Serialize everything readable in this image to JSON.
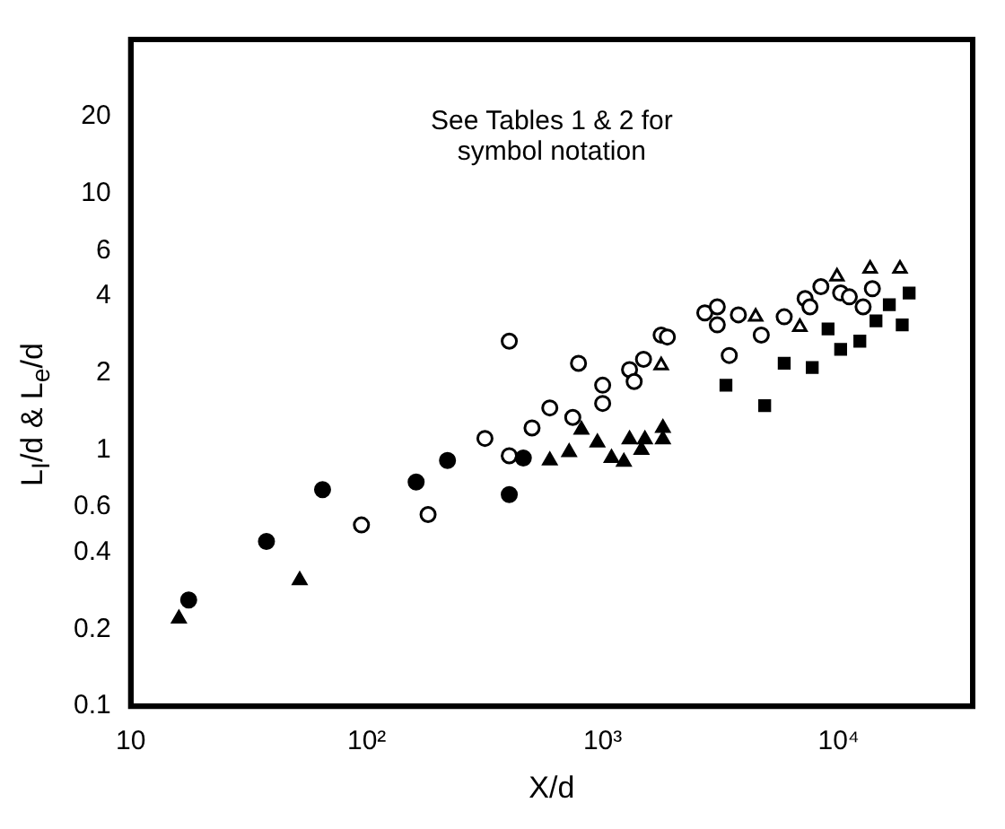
{
  "chart_data": {
    "type": "scatter",
    "xlabel": "X/d",
    "ylabel": "L$_{I}$/d & L$_{e}$/d",
    "annotations": [
      "See Tables 1 & 2 for\nsymbol notation"
    ],
    "log": "xy",
    "grid": false,
    "legend": false,
    "xlim": [
      10,
      37000
    ],
    "xticks": [
      10,
      {
        "value": 100,
        "label": "10²"
      },
      {
        "value": 1000,
        "label": "10³"
      },
      {
        "value": 10000,
        "label": "10⁴"
      }
    ],
    "ylim": [
      0.1,
      40
    ],
    "yticks": [
      0.1,
      0.2,
      0.4,
      0.6,
      1,
      2,
      4,
      6,
      10,
      20
    ],
    "series": [
      {
        "color": "#000000",
        "marker": "circle",
        "x": [
          17.6,
          37.6,
          65,
          162,
          220,
          402,
          461
        ],
        "values": [
          0.26,
          0.44,
          0.7,
          0.75,
          0.91,
          0.67,
          0.93
        ]
      },
      {
        "color": "#000000",
        "marker": "triangle",
        "x": [
          16,
          52,
          597,
          721,
          813,
          950,
          1090,
          1230,
          1300,
          1460,
          1510,
          1800,
          1800
        ],
        "values": [
          0.22,
          0.31,
          0.91,
          0.98,
          1.2,
          1.07,
          0.93,
          0.9,
          1.1,
          1.0,
          1.1,
          1.22,
          1.1
        ]
      },
      {
        "color": "#000000",
        "marker": "square",
        "x": [
          3330,
          4860,
          5880,
          7730,
          9020,
          10200,
          12300,
          14400,
          16400,
          18600,
          19900
        ],
        "values": [
          1.79,
          1.49,
          2.18,
          2.1,
          2.97,
          2.47,
          2.66,
          3.19,
          3.69,
          3.08,
          4.1
        ]
      },
      {
        "color": "#ffffff",
        "marker": "circle",
        "x": [
          95,
          182,
          317,
          402,
          402,
          502,
          597,
          747,
          790,
          1000,
          1000,
          1300,
          1360,
          1490,
          1770,
          1880,
          2710,
          3060,
          3060,
          3760,
          3440,
          4700,
          5880,
          7210,
          7560,
          8410,
          10200,
          11100,
          13900,
          12700
        ],
        "values": [
          0.51,
          0.56,
          1.11,
          0.95,
          2.66,
          1.22,
          1.46,
          1.34,
          2.18,
          1.79,
          1.52,
          2.06,
          1.85,
          2.26,
          2.81,
          2.76,
          3.43,
          3.62,
          3.08,
          3.37,
          2.34,
          2.81,
          3.31,
          3.9,
          3.62,
          4.34,
          4.1,
          3.96,
          4.26,
          3.62
        ]
      },
      {
        "color": "#ffffff",
        "marker": "triangle",
        "x": [
          1770,
          4450,
          6850,
          9840,
          13600,
          18200
        ],
        "values": [
          2.14,
          3.31,
          3.02,
          4.75,
          5.1,
          5.1
        ]
      }
    ]
  }
}
